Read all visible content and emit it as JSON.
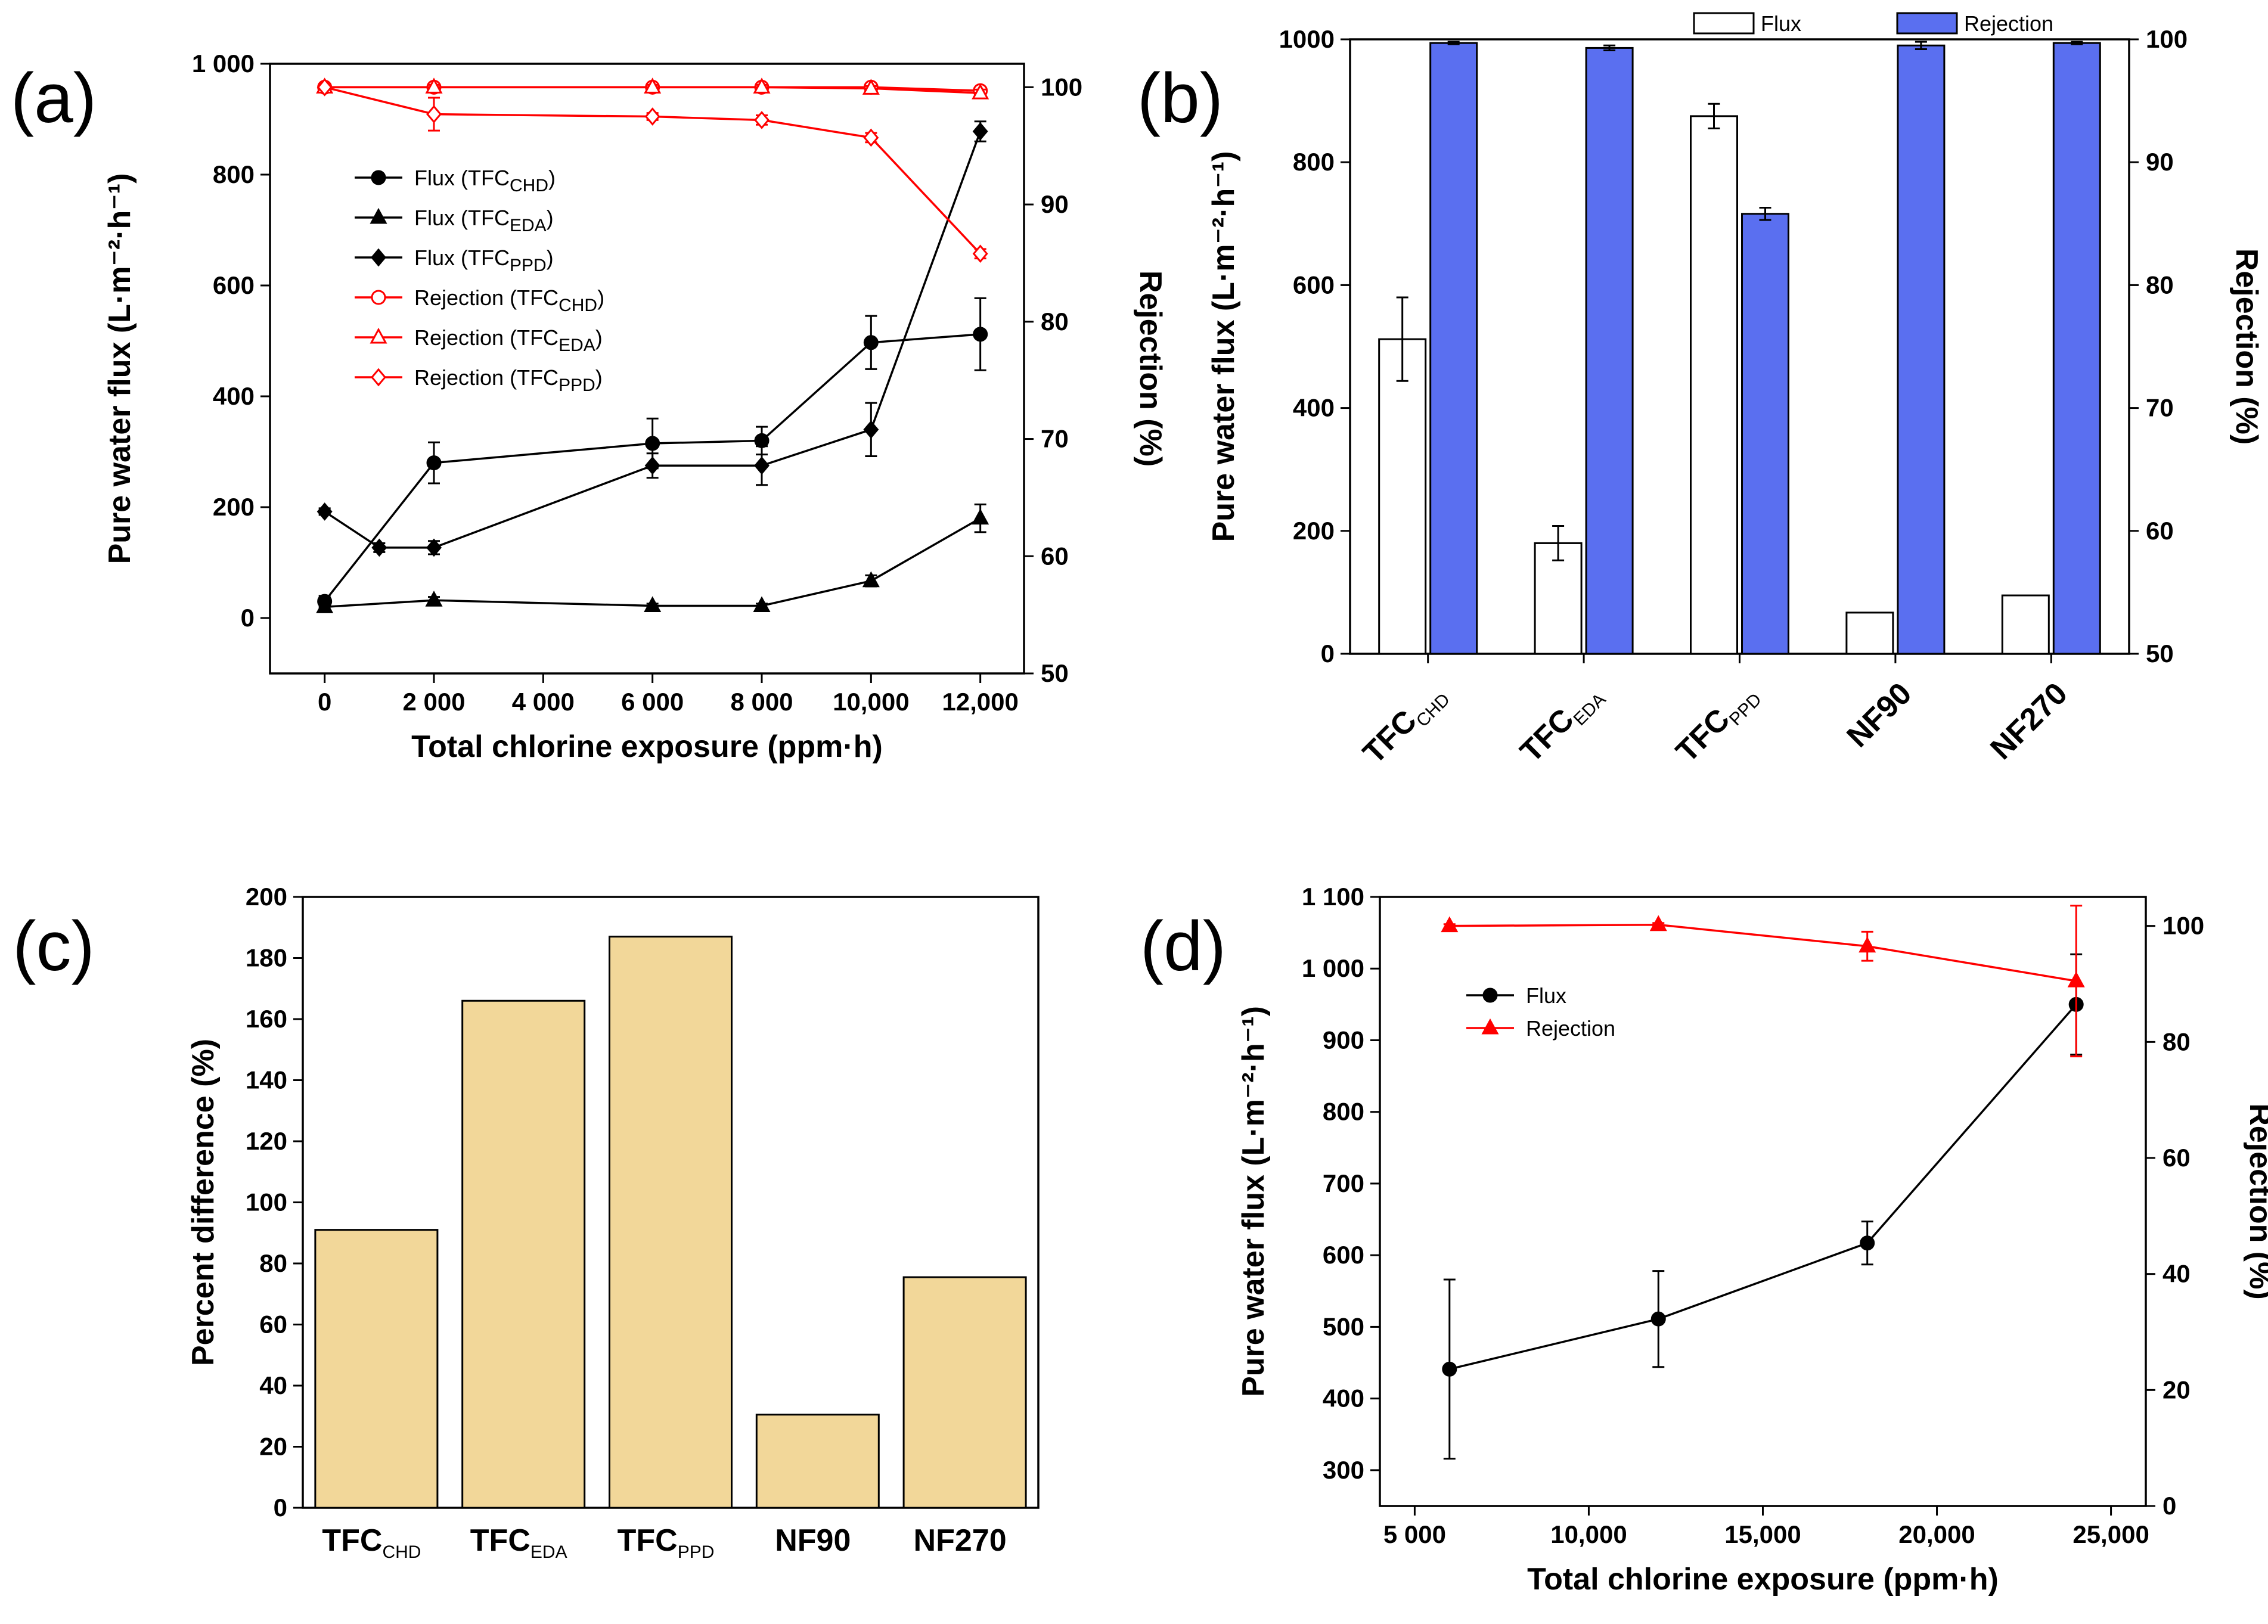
{
  "chart_data": [
    {
      "panel": "(a)",
      "type": "line",
      "xlabel": "Total chlorine exposure (ppm·h)",
      "ylabel": "Pure water flux (L·m⁻²·h⁻¹)",
      "y2label": "Rejection (%)",
      "xlim": [
        -1000,
        12800
      ],
      "ylim": [
        -100,
        1000
      ],
      "y2lim": [
        50,
        102
      ],
      "x_ticks": [
        "0",
        "2 000",
        "4 000",
        "6 000",
        "8 000",
        "10,000",
        "12,000"
      ],
      "y_ticks": [
        "0",
        "200",
        "400",
        "600",
        "800",
        "1 000"
      ],
      "y2_ticks": [
        "50",
        "60",
        "70",
        "80",
        "90",
        "100"
      ],
      "legend_position": "center-left",
      "series": [
        {
          "name": "Flux (TFC",
          "sub": "CHD",
          "axis": "left",
          "marker": "circle-filled",
          "color": "#000000",
          "x": [
            0,
            2000,
            6000,
            8000,
            10000,
            12000
          ],
          "y": [
            30,
            280,
            315,
            320,
            497,
            512
          ],
          "err": [
            10,
            37,
            45,
            25,
            48,
            65
          ]
        },
        {
          "name": "Flux (TFC",
          "sub": "EDA",
          "axis": "left",
          "marker": "triangle-filled",
          "color": "#000000",
          "x": [
            0,
            2000,
            6000,
            8000,
            10000,
            12000
          ],
          "y": [
            20,
            32,
            22,
            22,
            67,
            180
          ],
          "err": [
            6,
            6,
            4,
            4,
            10,
            25
          ]
        },
        {
          "name": "Flux (TFC",
          "sub": "PPD",
          "axis": "left",
          "marker": "diamond-filled",
          "color": "#000000",
          "x": [
            0,
            1000,
            2000,
            6000,
            8000,
            10000,
            12000
          ],
          "y": [
            192,
            127,
            127,
            275,
            275,
            340,
            878
          ],
          "err": [
            6,
            8,
            12,
            22,
            35,
            48,
            18
          ]
        },
        {
          "name": "Rejection (TFC",
          "sub": "CHD",
          "axis": "right",
          "marker": "circle-open",
          "color": "#ff0000",
          "x": [
            0,
            2000,
            6000,
            8000,
            10000,
            12000
          ],
          "y": [
            100,
            100,
            100,
            100,
            100,
            99.7
          ],
          "err": [
            0.2,
            0.2,
            0.2,
            0.2,
            0.2,
            0.2
          ]
        },
        {
          "name": "Rejection (TFC",
          "sub": "EDA",
          "axis": "right",
          "marker": "triangle-open",
          "color": "#ff0000",
          "x": [
            0,
            2000,
            6000,
            8000,
            10000,
            12000
          ],
          "y": [
            100,
            100,
            100,
            100,
            99.9,
            99.5
          ],
          "err": [
            0.2,
            0.2,
            0.2,
            0.2,
            0.2,
            0.3
          ]
        },
        {
          "name": "Rejection (TFC",
          "sub": "PPD",
          "axis": "right",
          "marker": "diamond-open",
          "color": "#ff0000",
          "x": [
            0,
            2000,
            6000,
            8000,
            10000,
            12000
          ],
          "y": [
            100,
            97.7,
            97.5,
            97.2,
            95.7,
            85.8
          ],
          "err": [
            0.2,
            1.4,
            0.3,
            0.4,
            0.4,
            0.4
          ]
        }
      ]
    },
    {
      "panel": "(b)",
      "type": "bar",
      "ylabel": "Pure water flux (L·m⁻²·h⁻¹)",
      "y2label": "Rejection (%)",
      "ylim": [
        0,
        1000
      ],
      "y2lim": [
        50,
        100
      ],
      "y_ticks": [
        "0",
        "200",
        "400",
        "600",
        "800",
        "1000"
      ],
      "y2_ticks": [
        "50",
        "60",
        "70",
        "80",
        "90",
        "100"
      ],
      "legend_position": "top",
      "categories": [
        {
          "main": "TFC",
          "sub": "CHD"
        },
        {
          "main": "TFC",
          "sub": "EDA"
        },
        {
          "main": "TFC",
          "sub": "PPD"
        },
        {
          "main": "NF90",
          "sub": ""
        },
        {
          "main": "NF270",
          "sub": ""
        }
      ],
      "series": [
        {
          "name": "Flux",
          "axis": "left",
          "color": "#ffffff",
          "values": [
            512,
            180,
            875,
            67,
            95
          ],
          "err": [
            68,
            28,
            20,
            0,
            0
          ]
        },
        {
          "name": "Rejection",
          "axis": "right",
          "color": "#5a6ff0",
          "values": [
            99.7,
            99.3,
            85.8,
            99.5,
            99.7
          ],
          "err": [
            0.1,
            0.2,
            0.5,
            0.3,
            0.1
          ]
        }
      ]
    },
    {
      "panel": "(c)",
      "type": "bar",
      "ylabel": "Percent difference (%)",
      "ylim": [
        0,
        200
      ],
      "y_ticks": [
        "0",
        "20",
        "40",
        "60",
        "80",
        "100",
        "120",
        "140",
        "160",
        "180",
        "200"
      ],
      "categories": [
        {
          "main": "TFC",
          "sub": "CHD"
        },
        {
          "main": "TFC",
          "sub": "EDA"
        },
        {
          "main": "TFC",
          "sub": "PPD"
        },
        {
          "main": "NF90",
          "sub": ""
        },
        {
          "main": "NF270",
          "sub": ""
        }
      ],
      "color": "#f2d799",
      "values": [
        91,
        166,
        187,
        30.5,
        75.5
      ]
    },
    {
      "panel": "(d)",
      "type": "line",
      "xlabel": "Total chlorine exposure (ppm·h)",
      "ylabel": "Pure water flux (L·m⁻²·h⁻¹)",
      "y2label": "Rejection (%)",
      "xlim": [
        4000,
        26000
      ],
      "ylim": [
        250,
        1100
      ],
      "y2lim": [
        0,
        105
      ],
      "x_ticks": [
        "5 000",
        "10,000",
        "15,000",
        "20,000",
        "25,000"
      ],
      "y_ticks": [
        "300",
        "400",
        "500",
        "600",
        "700",
        "800",
        "900",
        "1 000",
        "1 100"
      ],
      "y2_ticks": [
        "0",
        "20",
        "40",
        "60",
        "80",
        "100"
      ],
      "legend_position": "top-left",
      "series": [
        {
          "name": "Flux",
          "axis": "left",
          "marker": "circle-filled",
          "color": "#000000",
          "x": [
            6000,
            12000,
            18000,
            24000
          ],
          "y": [
            441,
            511,
            617,
            950
          ],
          "err": [
            125,
            67,
            30,
            70
          ]
        },
        {
          "name": "Rejection",
          "axis": "right",
          "marker": "triangle-filled",
          "color": "#ff0000",
          "x": [
            6000,
            12000,
            18000,
            24000
          ],
          "y": [
            100,
            100.2,
            96.5,
            90.5
          ],
          "err": [
            0.3,
            0.3,
            2.5,
            13
          ]
        }
      ]
    }
  ]
}
